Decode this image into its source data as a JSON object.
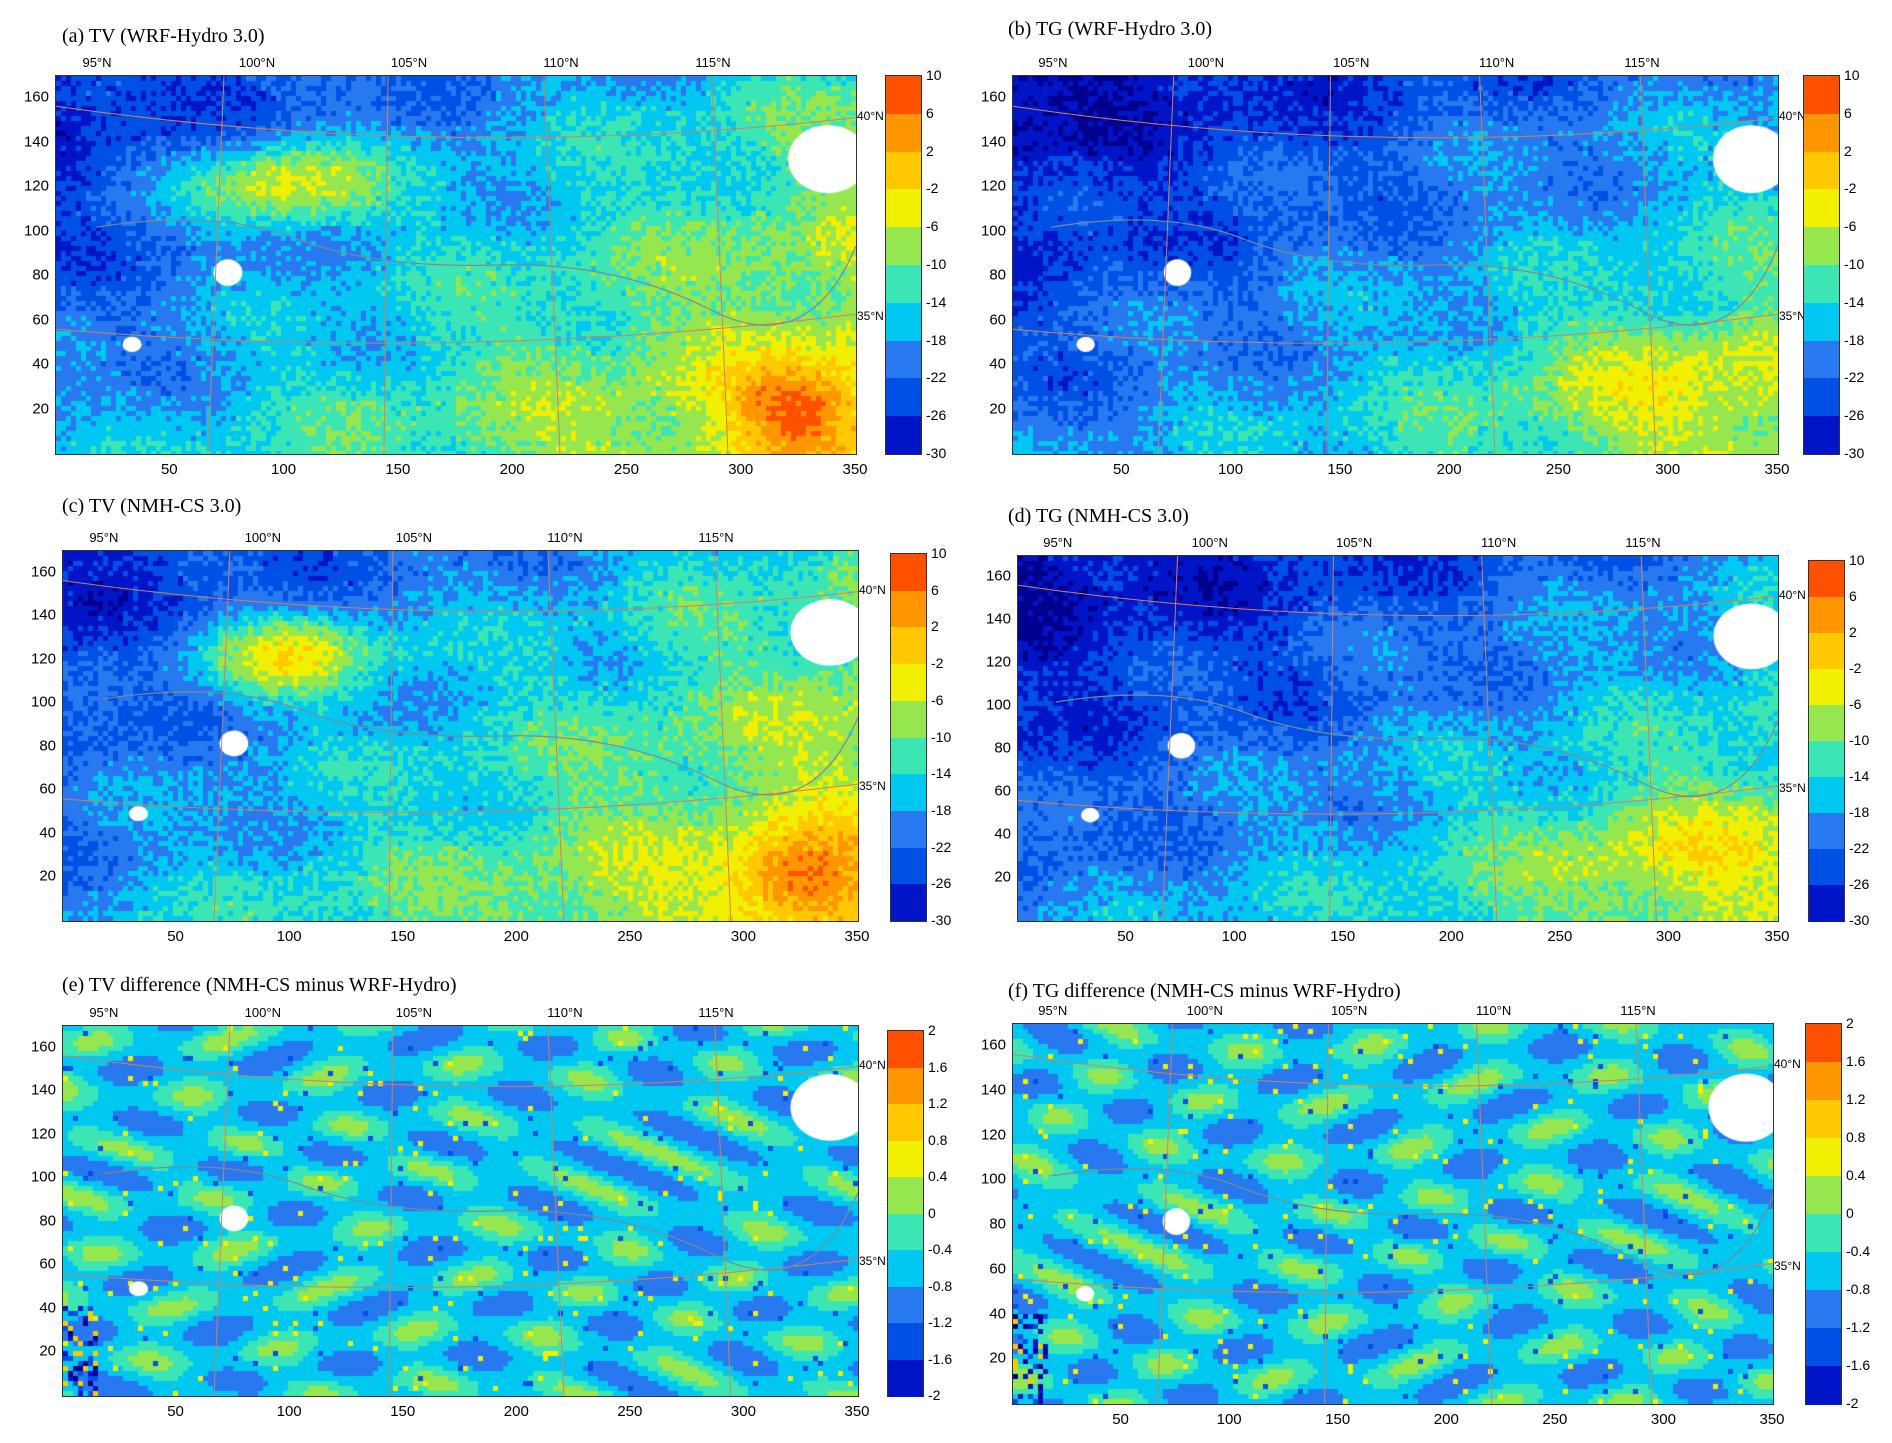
{
  "chart_data": [
    {
      "id": "a",
      "type": "heatmap",
      "title": "(a) TV (WRF-Hydro 3.0)",
      "x_ticks": [
        "50",
        "100",
        "150",
        "200",
        "250",
        "300",
        "350"
      ],
      "y_ticks": [
        "20",
        "40",
        "60",
        "80",
        "100",
        "120",
        "140",
        "160"
      ],
      "xlim": [
        0,
        350
      ],
      "ylim": [
        0,
        170
      ],
      "lon_labels": [
        "95°N",
        "100°N",
        "105°N",
        "110°N",
        "115°N"
      ],
      "lat_labels": [
        "40°N",
        "35°N"
      ],
      "colorbar_ticks": [
        "10",
        "6",
        "2",
        "-2",
        "-6",
        "-10",
        "-14",
        "-18",
        "-22",
        "-26",
        "-30"
      ],
      "field": "tv"
    },
    {
      "id": "b",
      "type": "heatmap",
      "title": "(b) TG (WRF-Hydro 3.0)",
      "x_ticks": [
        "50",
        "100",
        "150",
        "200",
        "250",
        "300",
        "350"
      ],
      "y_ticks": [
        "20",
        "40",
        "60",
        "80",
        "100",
        "120",
        "140",
        "160"
      ],
      "xlim": [
        0,
        350
      ],
      "ylim": [
        0,
        170
      ],
      "lon_labels": [
        "95°N",
        "100°N",
        "105°N",
        "110°N",
        "115°N"
      ],
      "lat_labels": [
        "40°N",
        "35°N"
      ],
      "colorbar_ticks": [
        "10",
        "6",
        "2",
        "-2",
        "-6",
        "-10",
        "-14",
        "-18",
        "-22",
        "-26",
        "-30"
      ],
      "field": "tg"
    },
    {
      "id": "c",
      "type": "heatmap",
      "title": "(c) TV (NMH-CS 3.0)",
      "x_ticks": [
        "50",
        "100",
        "150",
        "200",
        "250",
        "300",
        "350"
      ],
      "y_ticks": [
        "20",
        "40",
        "60",
        "80",
        "100",
        "120",
        "140",
        "160"
      ],
      "xlim": [
        0,
        350
      ],
      "ylim": [
        0,
        170
      ],
      "lon_labels": [
        "95°N",
        "100°N",
        "105°N",
        "110°N",
        "115°N"
      ],
      "lat_labels": [
        "40°N",
        "35°N"
      ],
      "colorbar_ticks": [
        "10",
        "6",
        "2",
        "-2",
        "-6",
        "-10",
        "-14",
        "-18",
        "-22",
        "-26",
        "-30"
      ],
      "field": "tv"
    },
    {
      "id": "d",
      "type": "heatmap",
      "title": "(d) TG (NMH-CS 3.0)",
      "x_ticks": [
        "50",
        "100",
        "150",
        "200",
        "250",
        "300",
        "350"
      ],
      "y_ticks": [
        "20",
        "40",
        "60",
        "80",
        "100",
        "120",
        "140",
        "160"
      ],
      "xlim": [
        0,
        350
      ],
      "ylim": [
        0,
        170
      ],
      "lon_labels": [
        "95°N",
        "100°N",
        "105°N",
        "110°N",
        "115°N"
      ],
      "lat_labels": [
        "40°N",
        "35°N"
      ],
      "colorbar_ticks": [
        "10",
        "6",
        "2",
        "-2",
        "-6",
        "-10",
        "-14",
        "-18",
        "-22",
        "-26",
        "-30"
      ],
      "field": "tg"
    },
    {
      "id": "e",
      "type": "heatmap",
      "title": "(e) TV difference (NMH-CS minus WRF-Hydro)",
      "x_ticks": [
        "50",
        "100",
        "150",
        "200",
        "250",
        "300",
        "350"
      ],
      "y_ticks": [
        "20",
        "40",
        "60",
        "80",
        "100",
        "120",
        "140",
        "160"
      ],
      "xlim": [
        0,
        350
      ],
      "ylim": [
        0,
        170
      ],
      "lon_labels": [
        "95°N",
        "100°N",
        "105°N",
        "110°N",
        "115°N"
      ],
      "lat_labels": [
        "40°N",
        "35°N"
      ],
      "colorbar_ticks": [
        "2",
        "1.6",
        "1.2",
        "0.8",
        "0.4",
        "0",
        "-0.4",
        "-0.8",
        "-1.2",
        "-1.6",
        "-2"
      ],
      "field": "diff"
    },
    {
      "id": "f",
      "type": "heatmap",
      "title": "(f) TG difference (NMH-CS minus WRF-Hydro)",
      "x_ticks": [
        "50",
        "100",
        "150",
        "200",
        "250",
        "300",
        "350"
      ],
      "y_ticks": [
        "20",
        "40",
        "60",
        "80",
        "100",
        "120",
        "140",
        "160"
      ],
      "xlim": [
        0,
        350
      ],
      "ylim": [
        0,
        170
      ],
      "lon_labels": [
        "95°N",
        "100°N",
        "105°N",
        "110°N",
        "115°N"
      ],
      "lat_labels": [
        "40°N",
        "35°N"
      ],
      "colorbar_ticks": [
        "2",
        "1.6",
        "1.2",
        "0.8",
        "0.4",
        "0",
        "-0.4",
        "-0.8",
        "-1.2",
        "-1.6",
        "-2"
      ],
      "field": "diff"
    }
  ],
  "colors": {
    "colormap": [
      "#00008f",
      "#0014c8",
      "#0050e6",
      "#2878f0",
      "#00c8f0",
      "#3ce6b4",
      "#96e650",
      "#f0f000",
      "#ffc800",
      "#ff9600",
      "#ff5000"
    ],
    "grid_line": "#d08060",
    "boundary_line": "#7a8a9a"
  }
}
